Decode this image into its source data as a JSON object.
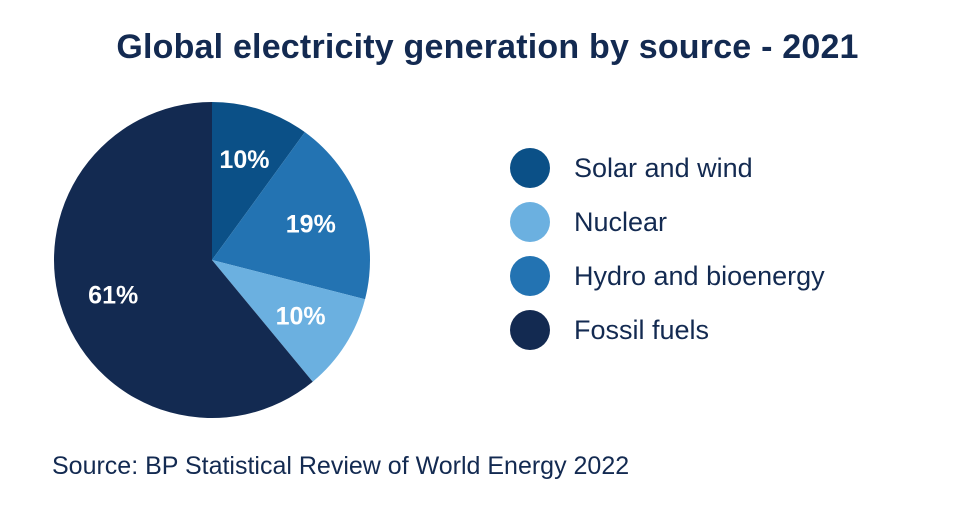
{
  "chart_data": {
    "type": "pie",
    "title": "Global electricity generation by source - 2021",
    "slices": [
      {
        "name": "Solar and wind",
        "value": 10,
        "label": "10%",
        "color": "#0b5087"
      },
      {
        "name": "Hydro and bioenergy",
        "value": 19,
        "label": "19%",
        "color": "#2373b2"
      },
      {
        "name": "Nuclear",
        "value": 10,
        "label": "10%",
        "color": "#6bb0e0"
      },
      {
        "name": "Fossil fuels",
        "value": 61,
        "label": "61%",
        "color": "#132a51"
      }
    ],
    "legend": [
      {
        "name": "Solar and wind",
        "color": "#0b5087"
      },
      {
        "name": "Nuclear",
        "color": "#6bb0e0"
      },
      {
        "name": "Hydro and bioenergy",
        "color": "#2373b2"
      },
      {
        "name": "Fossil fuels",
        "color": "#132a51"
      }
    ],
    "legend_position": "right",
    "source": "Source: BP Statistical Review of World Energy 2022"
  }
}
